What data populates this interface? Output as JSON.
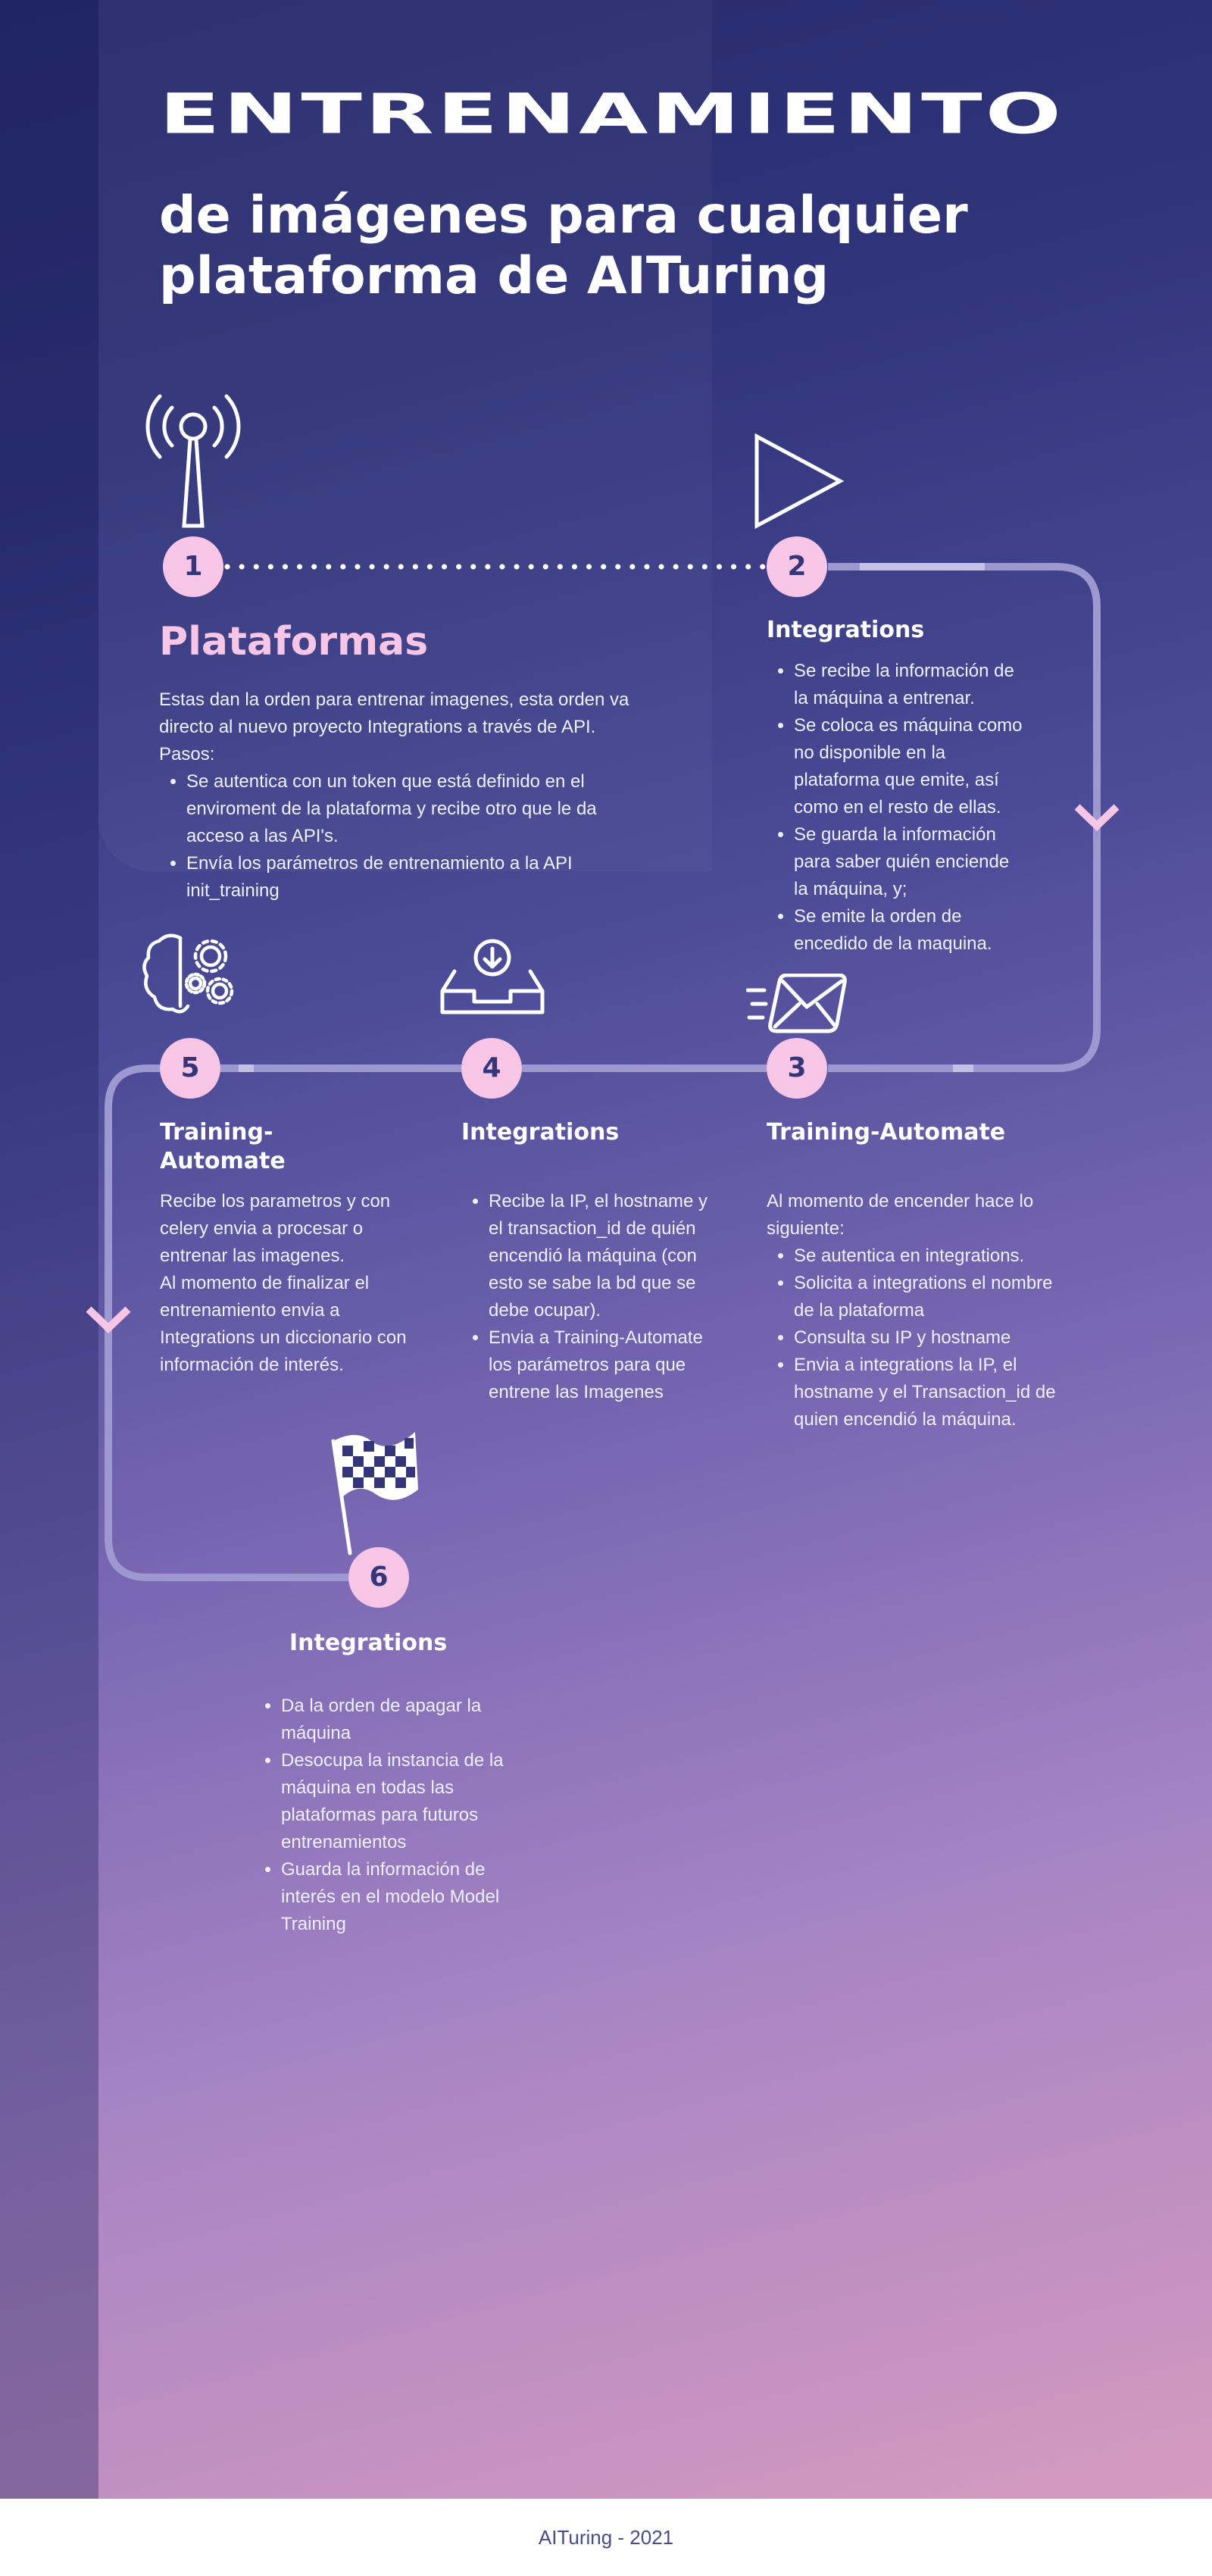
{
  "header": {
    "title": "Entrenamiento",
    "subtitle_line1": "de imágenes para cualquier",
    "subtitle_line2": "plataforma de AITuring"
  },
  "colors": {
    "accent_pink": "#f7c6e6",
    "badge_text": "#35357a",
    "path_line": "#9d98d0"
  },
  "steps": {
    "s1": {
      "number": "1",
      "icon": "antenna-icon",
      "title": "Plataformas",
      "intro1": "Estas dan la orden para entrenar imagenes, esta orden va",
      "intro2": "directo al nuevo proyecto Integrations a través de API.",
      "intro3": "Pasos:",
      "bullets": [
        "Se autentica con un token que está definido en el enviroment de la plataforma y recibe otro que le da acceso a las API's.",
        "Envía los parámetros de entrenamiento a la API init_training"
      ]
    },
    "s2": {
      "number": "2",
      "icon": "play-icon",
      "title": "Integrations",
      "bullets": [
        "Se recibe la información de la máquina a entrenar.",
        "Se coloca es máquina como no disponible en la plataforma que emite, así como en el resto de ellas.",
        "Se guarda la información para saber quién enciende la máquina, y;",
        "Se emite la orden de encedido de la maquina."
      ]
    },
    "s3": {
      "number": "3",
      "icon": "envelope-icon",
      "title": "Training-Automate",
      "intro": "Al momento de encender hace lo siguiente:",
      "bullets": [
        "Se autentica en integrations.",
        "Solicita a integrations el nombre de la plataforma",
        "Consulta su IP y hostname",
        "Envia a integrations la IP, el hostname y el Transaction_id de quien encendió la máquina."
      ]
    },
    "s4": {
      "number": "4",
      "icon": "inbox-icon",
      "title": "Integrations",
      "bullets": [
        "Recibe la IP, el hostname y el transaction_id de quién encendió la máquina (con esto se sabe la bd que se debe ocupar).",
        "Envia a Training-Automate los parámetros para que entrene las Imagenes"
      ]
    },
    "s5": {
      "number": "5",
      "icon": "brain-gears-icon",
      "title_line1": "Training-",
      "title_line2": "Automate",
      "para1": "Recibe los parametros y con celery envia a procesar o entrenar las imagenes.",
      "para2": "Al momento de finalizar el entrenamiento envia a Integrations un diccionario con información de interés."
    },
    "s6": {
      "number": "6",
      "icon": "checkered-flag-icon",
      "title": "Integrations",
      "bullets": [
        "Da la orden de apagar la máquina",
        "Desocupa la instancia de la máquina en todas las plataformas para futuros entrenamientos",
        "Guarda la información de interés en el modelo Model Training"
      ]
    }
  },
  "footer": {
    "text": "AITuring - 2021"
  }
}
